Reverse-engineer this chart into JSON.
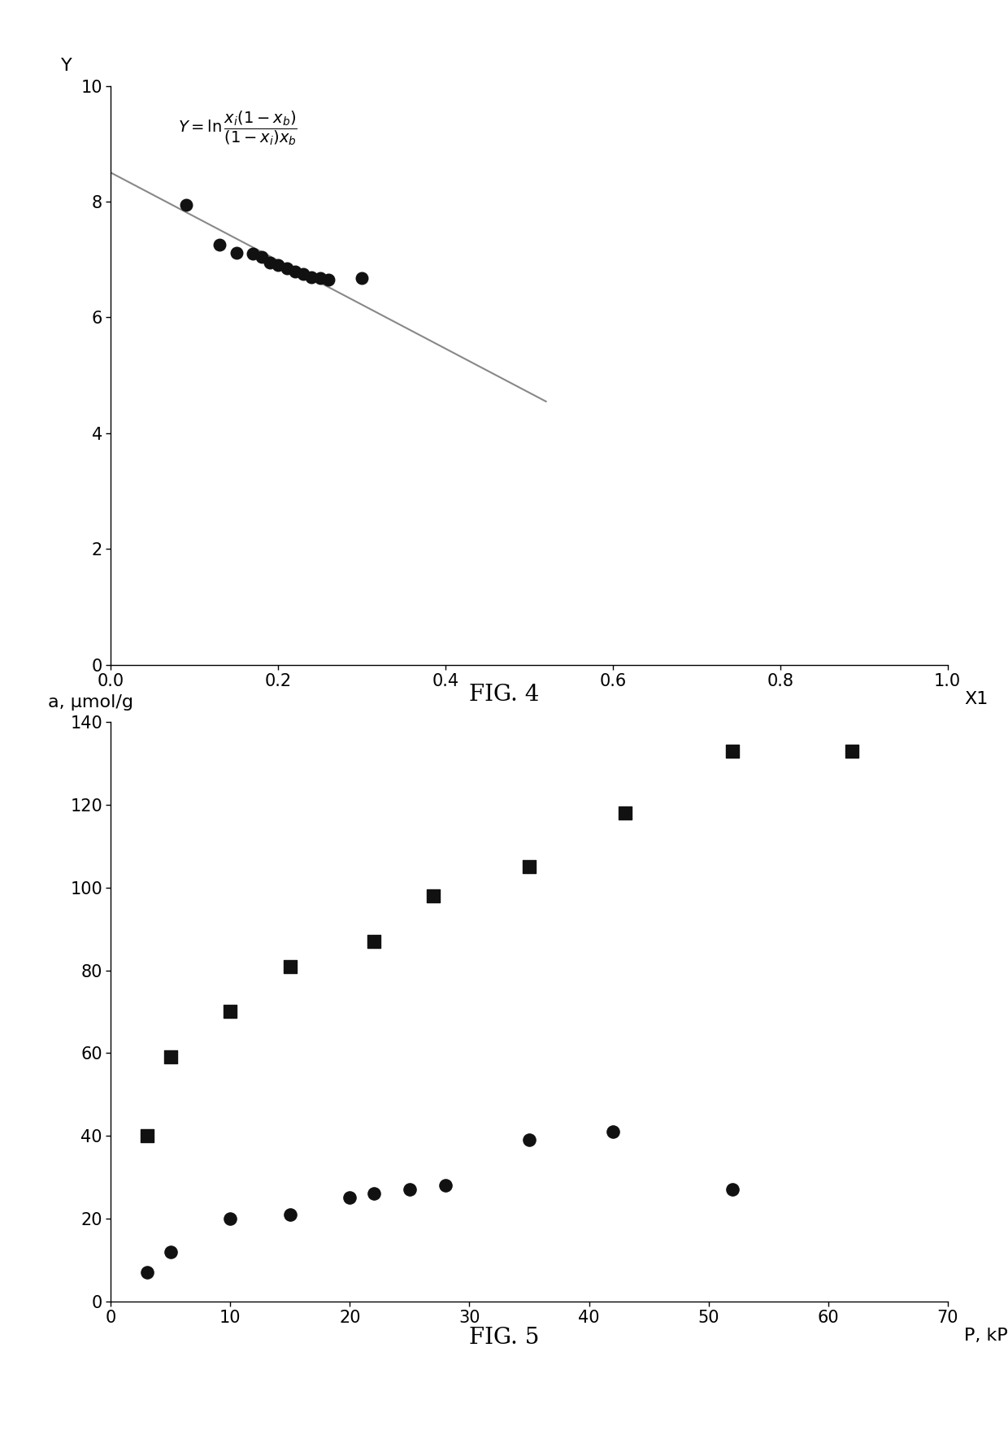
{
  "fig4": {
    "scatter_x": [
      0.09,
      0.13,
      0.15,
      0.17,
      0.18,
      0.19,
      0.2,
      0.21,
      0.22,
      0.23,
      0.24,
      0.25,
      0.26,
      0.3
    ],
    "scatter_y": [
      7.95,
      7.25,
      7.12,
      7.1,
      7.05,
      6.95,
      6.9,
      6.85,
      6.8,
      6.75,
      6.7,
      6.68,
      6.65,
      6.68
    ],
    "line_x": [
      0.0,
      0.52
    ],
    "line_y": [
      8.5,
      4.55
    ],
    "xlabel": "X1",
    "ylabel": "Y",
    "xlim": [
      0.0,
      1.0
    ],
    "ylim": [
      0,
      10
    ],
    "xticks": [
      0.0,
      0.2,
      0.4,
      0.6,
      0.8,
      1.0
    ],
    "xtick_labels": [
      "0.0",
      "0.2",
      "0.4",
      "0.6",
      "0.8",
      "1.0"
    ],
    "yticks": [
      0,
      2,
      4,
      6,
      8,
      10
    ],
    "ytick_labels": [
      "0",
      "2",
      "4",
      "6",
      "8",
      "10"
    ],
    "caption": "FIG. 4",
    "line_color": "#888888",
    "dot_color": "#111111"
  },
  "fig5": {
    "squares_x": [
      3,
      5,
      10,
      15,
      22,
      27,
      35,
      43,
      52,
      62
    ],
    "squares_y": [
      40,
      59,
      70,
      81,
      87,
      98,
      105,
      118,
      133,
      133
    ],
    "circles_x": [
      3,
      5,
      10,
      15,
      20,
      22,
      25,
      28,
      35,
      42,
      52
    ],
    "circles_y": [
      7,
      12,
      20,
      21,
      25,
      26,
      27,
      28,
      39,
      41,
      27
    ],
    "xlabel": "P, kPa",
    "ylabel": "a, μmol/g",
    "xlim": [
      0,
      70
    ],
    "ylim": [
      0,
      140
    ],
    "xticks": [
      0,
      10,
      20,
      30,
      40,
      50,
      60,
      70
    ],
    "xtick_labels": [
      "0",
      "10",
      "20",
      "30",
      "40",
      "50",
      "60",
      "70"
    ],
    "yticks": [
      0,
      20,
      40,
      60,
      80,
      100,
      120,
      140
    ],
    "ytick_labels": [
      "0",
      "20",
      "40",
      "60",
      "80",
      "100",
      "120",
      "140"
    ],
    "caption": "FIG. 5",
    "square_color": "#111111",
    "circle_color": "#111111"
  },
  "bg_color": "#ffffff",
  "text_color": "#000000"
}
